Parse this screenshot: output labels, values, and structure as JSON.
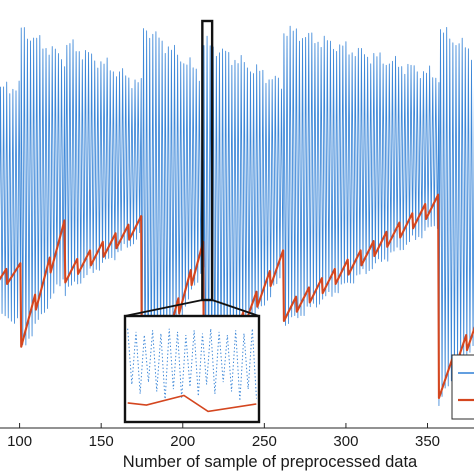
{
  "chart_data": {
    "type": "line",
    "xlabel": "Number of sample of preprocessed data",
    "ylabel": "",
    "xlim": [
      75,
      400
    ],
    "xticks": [
      100,
      150,
      200,
      250,
      300,
      350
    ],
    "xtick_labels": [
      "100",
      "150",
      "200",
      "250",
      "300",
      "350"
    ],
    "grid": false,
    "legend": {
      "placement": "bottom-right",
      "entries": [
        "",
        ""
      ]
    },
    "series": [
      {
        "color": "#3c87d8",
        "style": "dense-oscillation",
        "cycles": [
          {
            "x_start": 75,
            "x_end": 101,
            "peak_from": 0.78,
            "peak_to": 0.8,
            "trough_from": 0.27,
            "trough_to": 0.25
          },
          {
            "x_start": 101,
            "x_end": 128,
            "peak_from": 0.93,
            "peak_to": 0.86,
            "trough_from": 0.18,
            "trough_to": 0.36
          },
          {
            "x_start": 128,
            "x_end": 175,
            "peak_from": 0.9,
            "peak_to": 0.8,
            "trough_from": 0.32,
            "trough_to": 0.45
          },
          {
            "x_start": 175,
            "x_end": 213,
            "peak_from": 0.94,
            "peak_to": 0.82,
            "trough_from": 0.06,
            "trough_to": 0.38
          },
          {
            "x_start": 213,
            "x_end": 262,
            "peak_from": 0.9,
            "peak_to": 0.8,
            "trough_from": 0.08,
            "trough_to": 0.36
          },
          {
            "x_start": 262,
            "x_end": 357,
            "peak_from": 0.93,
            "peak_to": 0.82,
            "trough_from": 0.24,
            "trough_to": 0.48
          },
          {
            "x_start": 357,
            "x_end": 400,
            "peak_from": 0.93,
            "peak_to": 0.82,
            "trough_from": 0.06,
            "trough_to": 0.34
          }
        ]
      },
      {
        "color": "#d4461f",
        "style": "sawtooth",
        "cycles": [
          {
            "x_start": 75,
            "x_end": 101,
            "from": 0.31,
            "to": 0.35
          },
          {
            "x_start": 101,
            "x_end": 128,
            "from": 0.19,
            "to": 0.45
          },
          {
            "x_start": 128,
            "x_end": 175,
            "from": 0.34,
            "to": 0.46
          },
          {
            "x_start": 175,
            "x_end": 213,
            "from": 0.07,
            "to": 0.4
          },
          {
            "x_start": 213,
            "x_end": 262,
            "from": 0.09,
            "to": 0.38
          },
          {
            "x_start": 262,
            "x_end": 357,
            "from": 0.25,
            "to": 0.51
          },
          {
            "x_start": 357,
            "x_end": 400,
            "from": 0.07,
            "to": 0.35
          }
        ]
      }
    ],
    "highlight_window": {
      "x": [
        212,
        218
      ]
    },
    "inset": {
      "xlim": [
        212,
        218
      ]
    }
  }
}
